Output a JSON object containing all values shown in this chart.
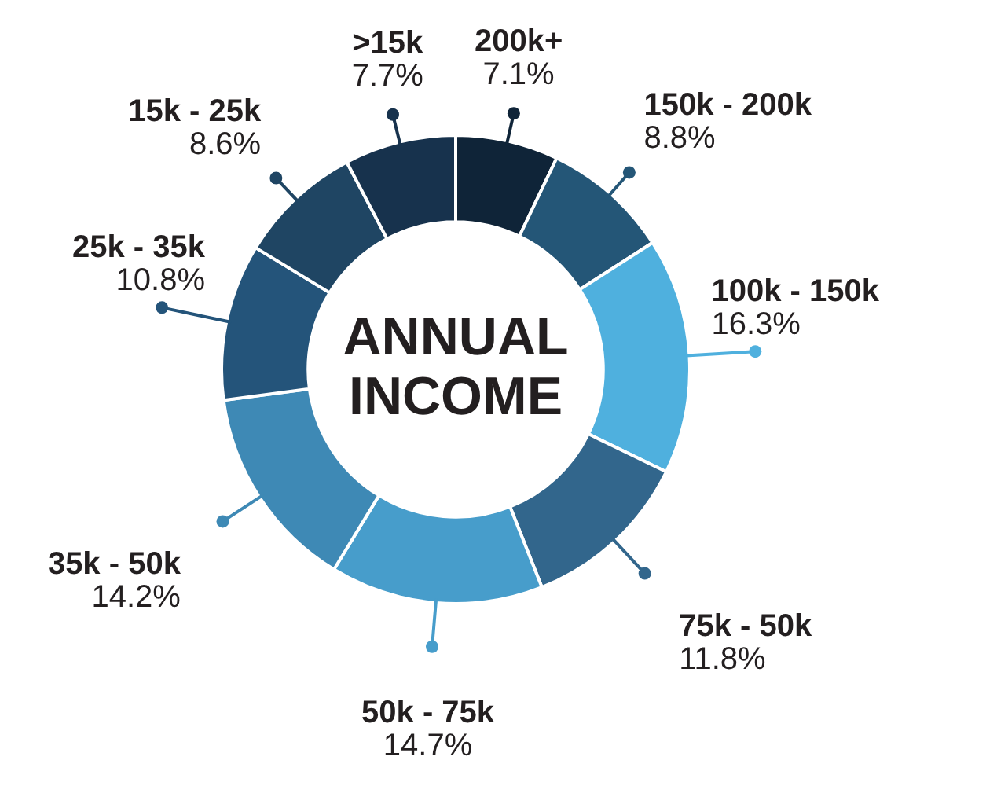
{
  "chart_data": {
    "type": "donut",
    "title": "ANNUAL INCOME",
    "categories": [
      "200k+",
      "150k - 200k",
      "100k - 150k",
      "75k - 50k",
      "50k - 75k",
      "35k - 50k",
      "25k - 35k",
      "15k - 25k",
      ">15k"
    ],
    "values": [
      7.1,
      8.8,
      16.3,
      11.8,
      14.7,
      14.2,
      10.8,
      8.6,
      7.7
    ],
    "colors": [
      "#0f2438",
      "#245677",
      "#4fb0de",
      "#32668c",
      "#479dcb",
      "#3e89b5",
      "#24547a",
      "#1f4563",
      "#17324d"
    ],
    "value_labels": [
      "7.1%",
      "8.8%",
      "16.3%",
      "11.8%",
      "14.7%",
      "14.2%",
      "10.8%",
      "8.6%",
      "7.7%"
    ],
    "legend": false
  }
}
